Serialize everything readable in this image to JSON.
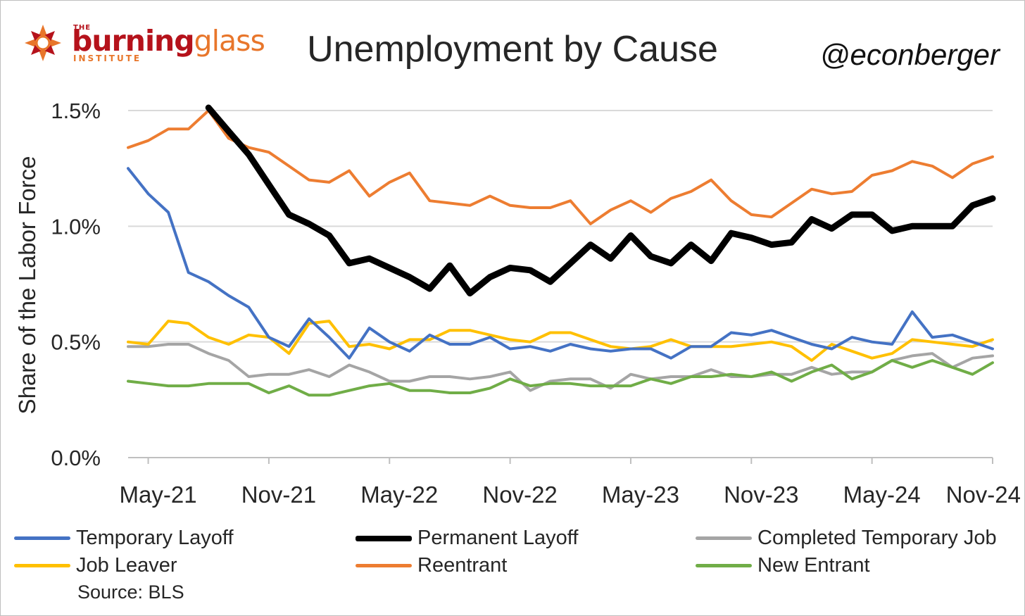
{
  "header": {
    "logo_the": "THE",
    "logo_word_1": "burning",
    "logo_word_2": "glass",
    "logo_sub": "INSTITUTE",
    "handle": "@econberger"
  },
  "source_note": "Source: BLS",
  "colors": {
    "temporary_layoff": "#4472c4",
    "permanent_layoff": "#000000",
    "completed_temporary_job": "#a5a5a5",
    "job_leaver": "#ffc000",
    "reentrant": "#ed7d31",
    "new_entrant": "#70ad47"
  },
  "chart_data": {
    "type": "line",
    "title": "Unemployment by Cause",
    "ylabel": "Share of the Labor Force",
    "xlabel": "",
    "ylim": [
      0,
      1.5
    ],
    "y_ticks": [
      "0.0%",
      "0.5%",
      "1.0%",
      "1.5%"
    ],
    "y_tick_values": [
      0,
      0.5,
      1.0,
      1.5
    ],
    "x_tick_labels": [
      "May-21",
      "Nov-21",
      "May-22",
      "Nov-22",
      "May-23",
      "Nov-23",
      "May-24",
      "Nov-24"
    ],
    "x": [
      "Apr-21",
      "May-21",
      "Jun-21",
      "Jul-21",
      "Aug-21",
      "Sep-21",
      "Oct-21",
      "Nov-21",
      "Dec-21",
      "Jan-22",
      "Feb-22",
      "Mar-22",
      "Apr-22",
      "May-22",
      "Jun-22",
      "Jul-22",
      "Aug-22",
      "Sep-22",
      "Oct-22",
      "Nov-22",
      "Dec-22",
      "Jan-23",
      "Feb-23",
      "Mar-23",
      "Apr-23",
      "May-23",
      "Jun-23",
      "Jul-23",
      "Aug-23",
      "Sep-23",
      "Oct-23",
      "Nov-23",
      "Dec-23",
      "Jan-24",
      "Feb-24",
      "Mar-24",
      "Apr-24",
      "May-24",
      "Jun-24",
      "Jul-24",
      "Aug-24",
      "Sep-24",
      "Oct-24",
      "Nov-24"
    ],
    "grid": true,
    "legend_position": "bottom",
    "series": [
      {
        "name": "Temporary Layoff",
        "color_key": "temporary_layoff",
        "width": 4,
        "values": [
          1.25,
          1.14,
          1.06,
          0.8,
          0.76,
          0.7,
          0.65,
          0.52,
          0.48,
          0.6,
          0.52,
          0.43,
          0.56,
          0.5,
          0.46,
          0.53,
          0.49,
          0.49,
          0.52,
          0.47,
          0.48,
          0.46,
          0.49,
          0.47,
          0.46,
          0.47,
          0.47,
          0.43,
          0.48,
          0.48,
          0.54,
          0.53,
          0.55,
          0.52,
          0.49,
          0.47,
          0.52,
          0.5,
          0.49,
          0.63,
          0.52,
          0.53,
          0.5,
          0.47
        ]
      },
      {
        "name": "Permanent Layoff",
        "color_key": "permanent_layoff",
        "width": 9,
        "values": [
          null,
          null,
          null,
          null,
          1.52,
          1.41,
          1.31,
          1.18,
          1.05,
          1.01,
          0.96,
          0.84,
          0.86,
          0.82,
          0.78,
          0.73,
          0.83,
          0.71,
          0.78,
          0.82,
          0.81,
          0.76,
          0.84,
          0.92,
          0.86,
          0.96,
          0.87,
          0.84,
          0.92,
          0.85,
          0.97,
          0.95,
          0.92,
          0.93,
          1.03,
          0.99,
          1.05,
          1.05,
          0.98,
          1.0,
          1.0,
          1.0,
          1.09,
          1.12
        ]
      },
      {
        "name": "Completed Temporary Job",
        "color_key": "completed_temporary_job",
        "width": 4,
        "values": [
          0.48,
          0.48,
          0.49,
          0.49,
          0.45,
          0.42,
          0.35,
          0.36,
          0.36,
          0.38,
          0.35,
          0.4,
          0.37,
          0.33,
          0.33,
          0.35,
          0.35,
          0.34,
          0.35,
          0.37,
          0.29,
          0.33,
          0.34,
          0.34,
          0.3,
          0.36,
          0.34,
          0.35,
          0.35,
          0.38,
          0.35,
          0.35,
          0.36,
          0.36,
          0.39,
          0.36,
          0.37,
          0.37,
          0.42,
          0.44,
          0.45,
          0.39,
          0.43,
          0.44
        ]
      },
      {
        "name": "Job Leaver",
        "color_key": "job_leaver",
        "width": 4,
        "values": [
          0.5,
          0.49,
          0.59,
          0.58,
          0.52,
          0.49,
          0.53,
          0.52,
          0.45,
          0.58,
          0.59,
          0.48,
          0.49,
          0.47,
          0.51,
          0.51,
          0.55,
          0.55,
          0.53,
          0.51,
          0.5,
          0.54,
          0.54,
          0.51,
          0.48,
          0.47,
          0.48,
          0.51,
          0.48,
          0.48,
          0.48,
          0.49,
          0.5,
          0.48,
          0.42,
          0.49,
          0.46,
          0.43,
          0.45,
          0.51,
          0.5,
          0.49,
          0.48,
          0.51
        ]
      },
      {
        "name": "Reentrant",
        "color_key": "reentrant",
        "width": 4,
        "values": [
          1.34,
          1.37,
          1.42,
          1.42,
          1.5,
          1.38,
          1.34,
          1.32,
          1.26,
          1.2,
          1.19,
          1.24,
          1.13,
          1.19,
          1.23,
          1.11,
          1.1,
          1.09,
          1.13,
          1.09,
          1.08,
          1.08,
          1.11,
          1.01,
          1.07,
          1.11,
          1.06,
          1.12,
          1.15,
          1.2,
          1.11,
          1.05,
          1.04,
          1.1,
          1.16,
          1.14,
          1.15,
          1.22,
          1.24,
          1.28,
          1.26,
          1.21,
          1.27,
          1.3
        ]
      },
      {
        "name": "New Entrant",
        "color_key": "new_entrant",
        "width": 4,
        "values": [
          0.33,
          0.32,
          0.31,
          0.31,
          0.32,
          0.32,
          0.32,
          0.28,
          0.31,
          0.27,
          0.27,
          0.29,
          0.31,
          0.32,
          0.29,
          0.29,
          0.28,
          0.28,
          0.3,
          0.34,
          0.31,
          0.32,
          0.32,
          0.31,
          0.31,
          0.31,
          0.34,
          0.32,
          0.35,
          0.35,
          0.36,
          0.35,
          0.37,
          0.33,
          0.37,
          0.4,
          0.34,
          0.37,
          0.42,
          0.39,
          0.42,
          0.39,
          0.36,
          0.41
        ]
      }
    ]
  }
}
